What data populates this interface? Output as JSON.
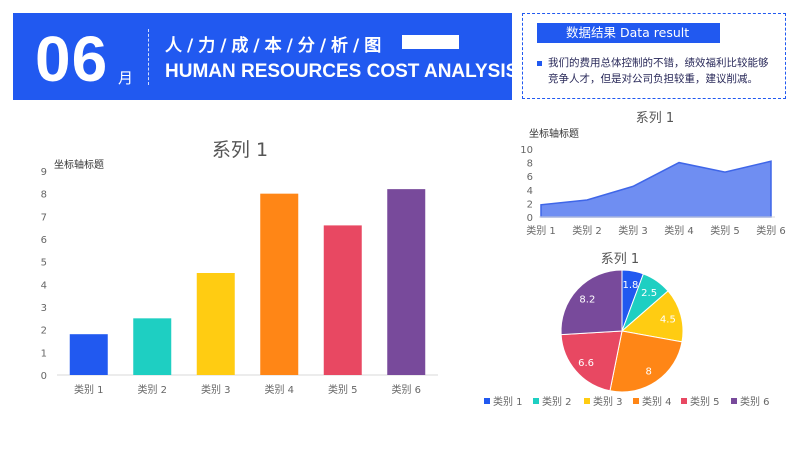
{
  "banner": {
    "month_number": "06",
    "month_unit": "月",
    "title_cn": "人/力/成/本/分/析/图",
    "title_en": "HUMAN RESOURCES COST ANALYSIS"
  },
  "result": {
    "heading": "数据结果   Data result",
    "text": "我们的费用总体控制的不错，绩效福利比较能够竞争人才，但是对公司负担较重，建议削减。"
  },
  "colors": {
    "brand": "#2159f0",
    "slices": [
      "#2159f0",
      "#1ecfc2",
      "#ffcc12",
      "#ff8616",
      "#e84862",
      "#784a9b"
    ],
    "area_fill": "#6f8ef2"
  },
  "chart_data": [
    {
      "type": "bar",
      "title": "系列 1",
      "ylabel": "坐标轴标题",
      "categories": [
        "类别 1",
        "类别 2",
        "类别 3",
        "类别 4",
        "类别 5",
        "类别 6"
      ],
      "values": [
        1.8,
        2.5,
        4.5,
        8,
        6.6,
        8.2
      ],
      "ylim": [
        0,
        9
      ],
      "yticks": [
        "0",
        "1",
        "2",
        "3",
        "4",
        "5",
        "6",
        "7",
        "8",
        "9"
      ],
      "grid": false
    },
    {
      "type": "area",
      "title": "系列 1",
      "ylabel": "坐标轴标题",
      "categories": [
        "类别 1",
        "类别 2",
        "类别 3",
        "类别 4",
        "类别 5",
        "类别 6"
      ],
      "values": [
        1.8,
        2.5,
        4.5,
        8,
        6.6,
        8.2
      ],
      "ylim": [
        0,
        10
      ],
      "yticks": [
        "0",
        "2",
        "4",
        "6",
        "8",
        "10"
      ]
    },
    {
      "type": "pie",
      "title": "系列 1",
      "categories": [
        "类别 1",
        "类别 2",
        "类别 3",
        "类别 4",
        "类别 5",
        "类别 6"
      ],
      "values": [
        1.8,
        2.5,
        4.5,
        8,
        6.6,
        8.2
      ],
      "labels": [
        "1.8",
        "2.5",
        "4.5",
        "8",
        "6.6",
        "8.2"
      ],
      "legend": "bottom"
    }
  ]
}
